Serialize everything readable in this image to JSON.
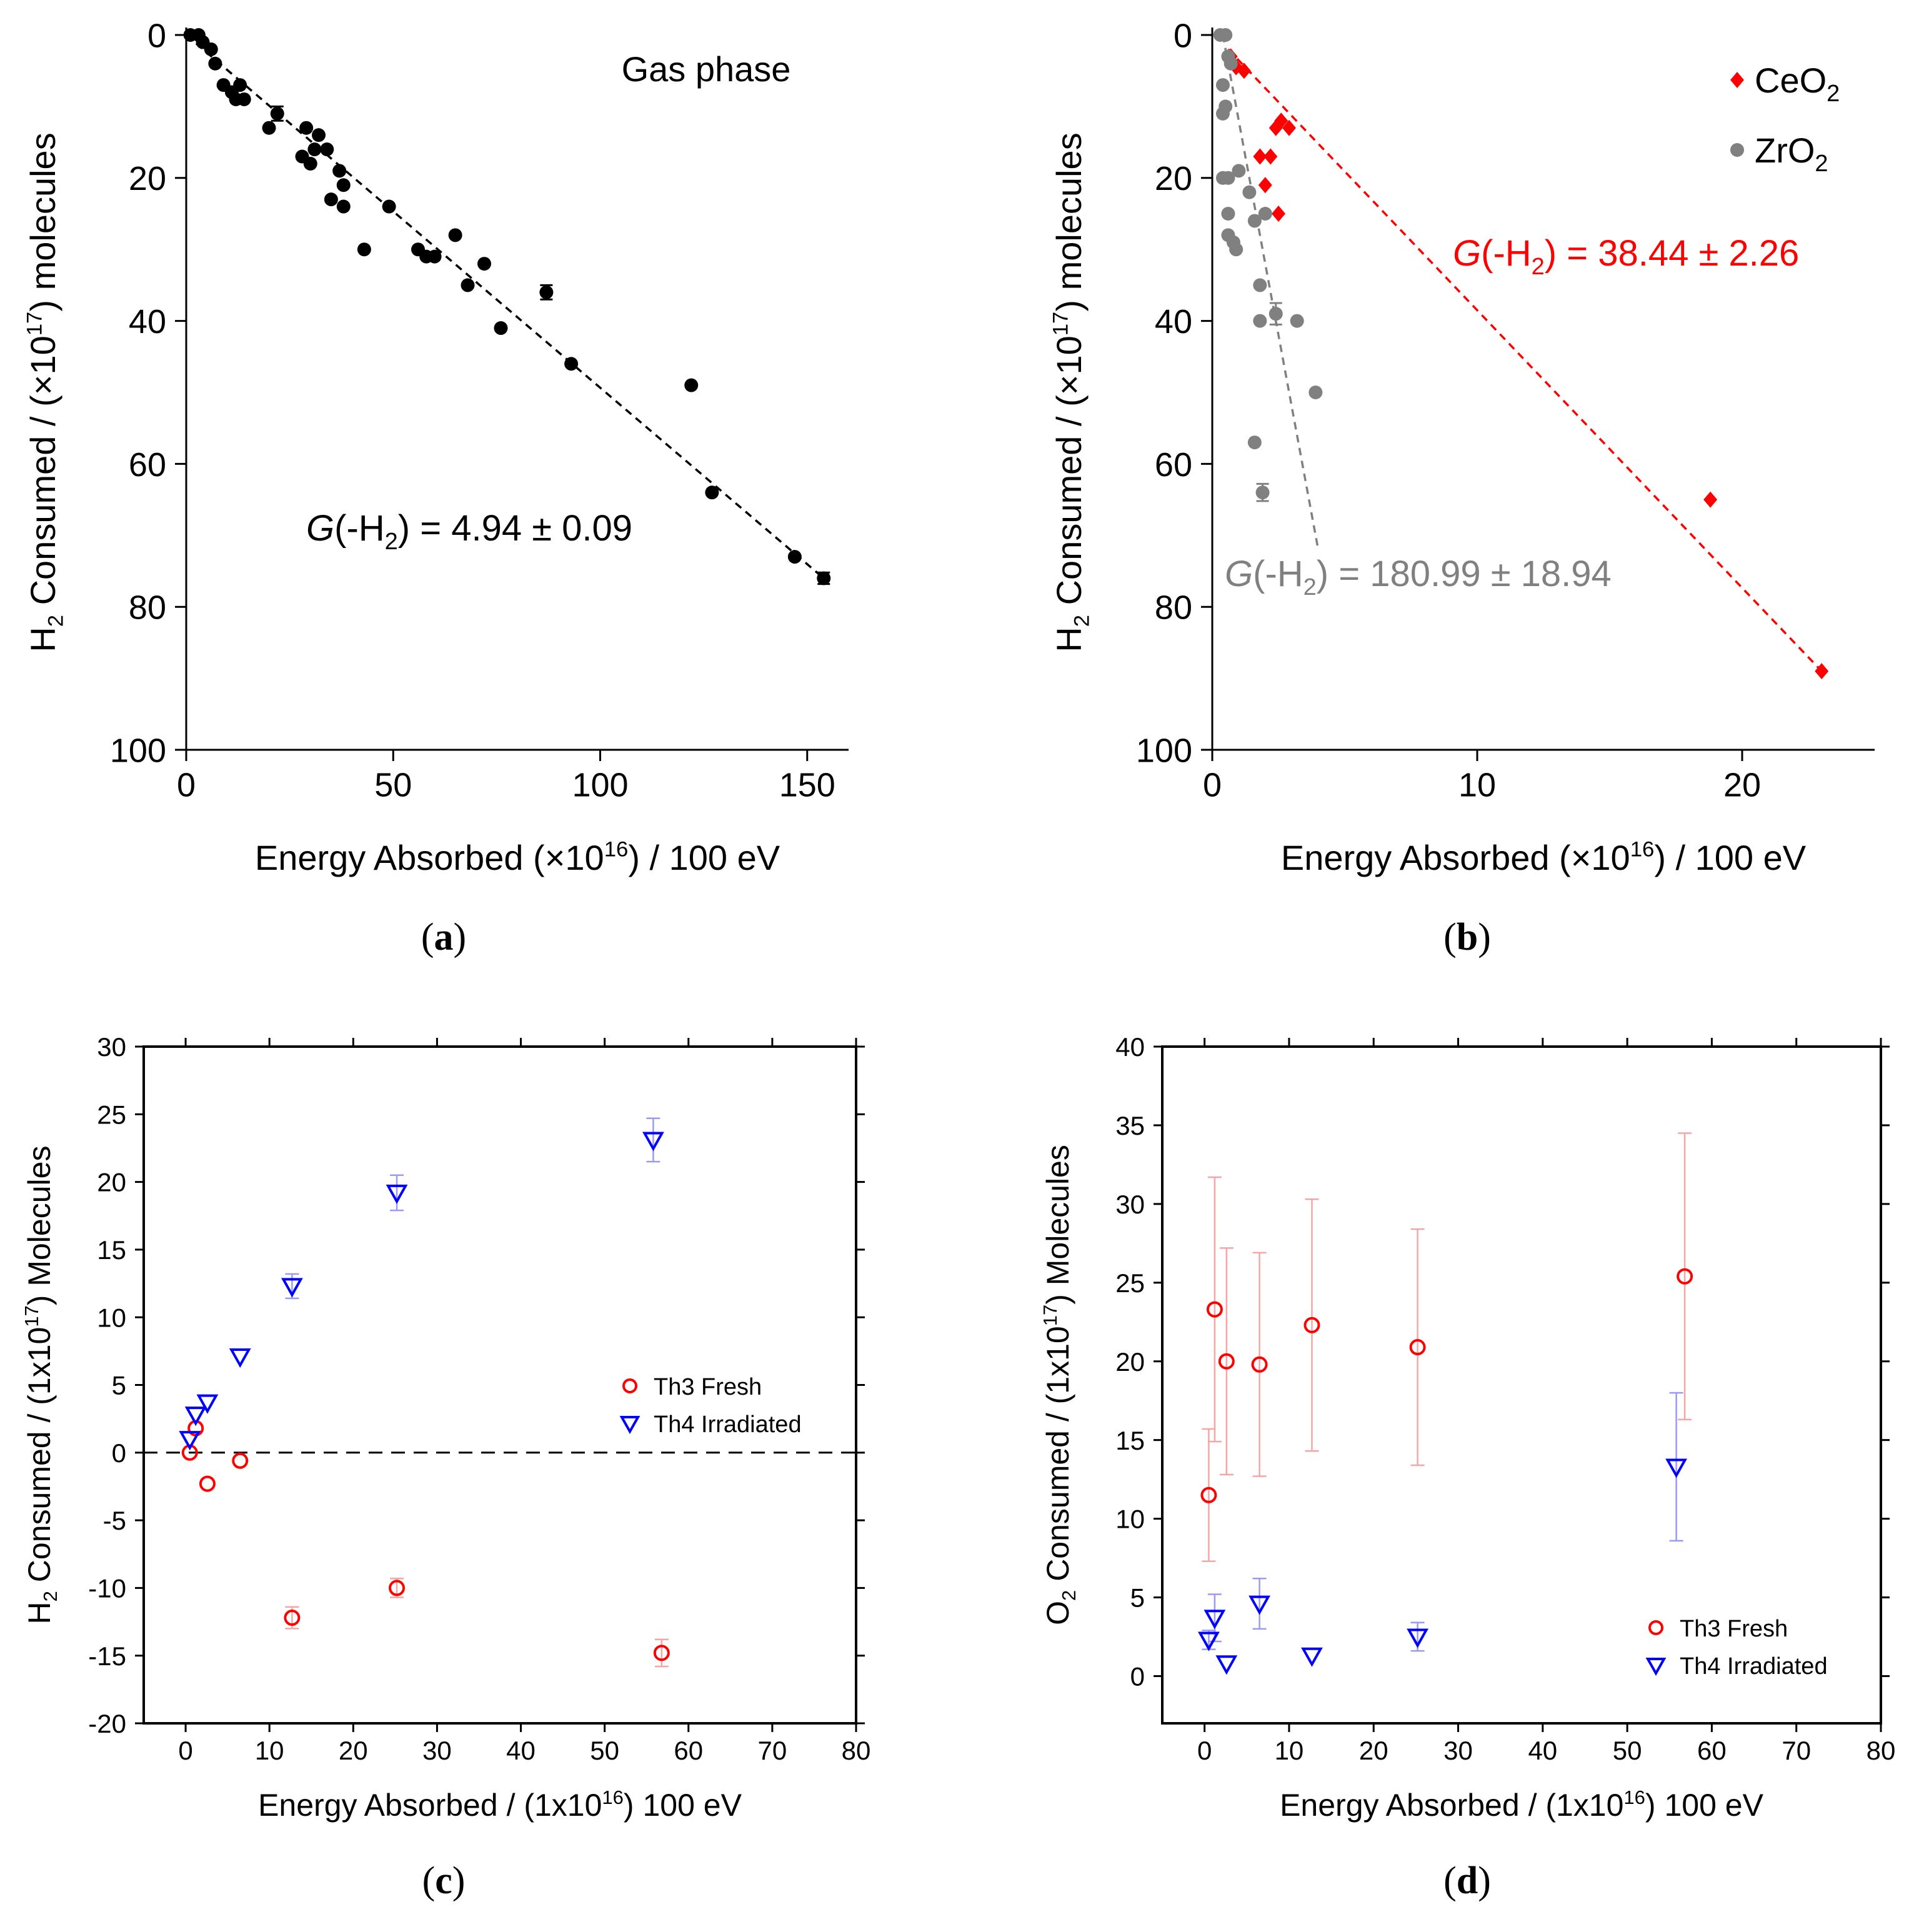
{
  "chart_data": [
    {
      "type": "scatter",
      "panel_label": "a",
      "xlabel": "Energy Absorbed (×10",
      "xlabel_sup": "16",
      "xlabel_tail": ") / 100 eV",
      "ylabel_pre": "H",
      "ylabel_sub": "2",
      "ylabel_mid": " Consumed / (×10",
      "ylabel_sup": "17",
      "ylabel_tail": ") molecules",
      "xlim": [
        0,
        160
      ],
      "ylim": [
        0,
        100
      ],
      "y_inverted": true,
      "xticks": [
        0,
        50,
        100,
        150
      ],
      "yticks": [
        0,
        20,
        40,
        60,
        80,
        100
      ],
      "annotation": "Gas phase",
      "fit_label_g": "G",
      "fit_label_tail": " = 4.94 ± 0.09",
      "fit_line": {
        "x": [
          0,
          154
        ],
        "y": [
          0,
          76
        ]
      },
      "series": [
        {
          "color": "#000000",
          "marker": "circle",
          "points": [
            [
              1,
              0
            ],
            [
              3,
              0
            ],
            [
              4,
              1
            ],
            [
              6,
              2
            ],
            [
              7,
              4
            ],
            [
              9,
              7
            ],
            [
              11,
              8
            ],
            [
              13,
              7
            ],
            [
              12,
              9
            ],
            [
              14,
              9
            ],
            [
              20,
              13
            ],
            [
              22,
              11
            ],
            [
              28,
              17
            ],
            [
              29,
              13
            ],
            [
              31,
              16
            ],
            [
              30,
              18
            ],
            [
              32,
              14
            ],
            [
              34,
              16
            ],
            [
              35,
              23
            ],
            [
              37,
              19
            ],
            [
              38,
              24
            ],
            [
              38,
              21
            ],
            [
              43,
              30
            ],
            [
              49,
              24
            ],
            [
              56,
              30
            ],
            [
              58,
              31
            ],
            [
              60,
              31
            ],
            [
              65,
              28
            ],
            [
              68,
              35
            ],
            [
              72,
              32
            ],
            [
              76,
              41
            ],
            [
              87,
              36
            ],
            [
              93,
              46
            ],
            [
              122,
              49
            ],
            [
              127,
              64
            ],
            [
              147,
              73
            ],
            [
              154,
              76
            ]
          ],
          "error_bars": [
            [
              22,
              1
            ],
            [
              87,
              1
            ],
            [
              154,
              0.8
            ]
          ]
        }
      ]
    },
    {
      "type": "scatter",
      "panel_label": "b",
      "xlabel": "Energy Absorbed (×10",
      "xlabel_sup": "16",
      "xlabel_tail": ") / 100 eV",
      "ylabel_pre": "H",
      "ylabel_sub": "2",
      "ylabel_mid": " Consumed / (×10",
      "ylabel_sup": "17",
      "ylabel_tail": ") molecules",
      "xlim": [
        0,
        25
      ],
      "ylim": [
        0,
        100
      ],
      "y_inverted": true,
      "xticks": [
        0,
        10,
        20
      ],
      "yticks": [
        0,
        20,
        40,
        60,
        80,
        100
      ],
      "series": [
        {
          "name": "CeO",
          "name_sub": "2",
          "color": "#ff0000",
          "marker": "diamond",
          "points": [
            [
              0.7,
              3
            ],
            [
              0.9,
              4.5
            ],
            [
              1.2,
              5
            ],
            [
              1.8,
              17
            ],
            [
              2.2,
              17
            ],
            [
              2.0,
              21
            ],
            [
              2.4,
              13
            ],
            [
              2.6,
              12
            ],
            [
              2.9,
              13
            ],
            [
              2.5,
              25
            ],
            [
              18.8,
              65
            ],
            [
              23.0,
              89
            ]
          ],
          "error_bars": [
            [
              2.7,
              1.2
            ]
          ],
          "fit_line": {
            "x": [
              0.6,
              23.0
            ],
            "y": [
              2,
              89
            ]
          },
          "fit_label_g": "G",
          "fit_label_tail": " = 38.44 ± 2.26"
        },
        {
          "name": "ZrO",
          "name_sub": "2",
          "color": "#808080",
          "marker": "circle",
          "points": [
            [
              0.3,
              0
            ],
            [
              0.5,
              0
            ],
            [
              0.6,
              3
            ],
            [
              0.7,
              4
            ],
            [
              0.4,
              7
            ],
            [
              0.5,
              10
            ],
            [
              0.4,
              11
            ],
            [
              0.4,
              20
            ],
            [
              1.0,
              19
            ],
            [
              0.6,
              20
            ],
            [
              0.6,
              25
            ],
            [
              0.6,
              28
            ],
            [
              0.8,
              29
            ],
            [
              0.9,
              30
            ],
            [
              1.4,
              22
            ],
            [
              1.6,
              26
            ],
            [
              2.0,
              25
            ],
            [
              1.8,
              35
            ],
            [
              1.8,
              40
            ],
            [
              2.4,
              39
            ],
            [
              3.2,
              40
            ],
            [
              3.9,
              50
            ],
            [
              1.6,
              57
            ],
            [
              1.9,
              64
            ]
          ],
          "error_bars": [
            [
              2.4,
              1.5
            ],
            [
              1.9,
              1.2
            ]
          ],
          "fit_line": {
            "x": [
              0.4,
              4.0
            ],
            "y": [
              0,
              72
            ]
          },
          "fit_label_g": "G",
          "fit_label_tail": " = 180.99 ± 18.94"
        }
      ]
    },
    {
      "type": "scatter",
      "panel_label": "c",
      "xlabel": "Energy Absorbed / (1x10",
      "xlabel_sup": "16",
      "xlabel_tail": ") 100 eV",
      "ylabel_pre": "H",
      "ylabel_sub": "2",
      "ylabel_mid": " Consumed / (1x10",
      "ylabel_sup": "17",
      "ylabel_tail": ") Molecules",
      "xlim": [
        -5,
        80
      ],
      "ylim": [
        -20,
        30
      ],
      "xticks": [
        0,
        10,
        20,
        30,
        40,
        50,
        60,
        70,
        80
      ],
      "yticks": [
        -20,
        -15,
        -10,
        -5,
        0,
        5,
        10,
        15,
        20,
        25,
        30
      ],
      "zero_line": true,
      "series": [
        {
          "name": "Th3 Fresh",
          "color": "#ff0000",
          "marker": "open-circle",
          "points": [
            [
              0.5,
              0
            ],
            [
              1.2,
              1.8
            ],
            [
              2.6,
              -2.3
            ],
            [
              6.5,
              -0.6
            ],
            [
              12.7,
              -12.2
            ],
            [
              25.2,
              -10.0
            ],
            [
              56.8,
              -14.8
            ]
          ],
          "errors": [
            0,
            0,
            0,
            0,
            0.8,
            0.7,
            1.0
          ]
        },
        {
          "name": "Th4 Irradiated",
          "color": "#0000ff",
          "marker": "open-triangle-down",
          "points": [
            [
              0.5,
              1.0
            ],
            [
              1.2,
              2.8
            ],
            [
              2.6,
              3.7
            ],
            [
              6.5,
              7.1
            ],
            [
              12.7,
              12.3
            ],
            [
              25.2,
              19.2
            ],
            [
              55.8,
              23.1
            ]
          ],
          "errors": [
            0,
            0,
            0,
            0,
            0.9,
            1.3,
            1.6
          ]
        }
      ]
    },
    {
      "type": "scatter",
      "panel_label": "d",
      "xlabel": "Energy Absorbed / (1x10",
      "xlabel_sup": "16",
      "xlabel_tail": ") 100 eV",
      "ylabel_pre": "O",
      "ylabel_sub": "2",
      "ylabel_mid": " Consumed / (1x10",
      "ylabel_sup": "17",
      "ylabel_tail": ") Molecules",
      "xlim": [
        -5,
        80
      ],
      "ylim": [
        -3,
        40
      ],
      "xticks": [
        0,
        10,
        20,
        30,
        40,
        50,
        60,
        70,
        80
      ],
      "yticks": [
        0,
        5,
        10,
        15,
        20,
        25,
        30,
        35,
        40
      ],
      "series": [
        {
          "name": "Th3 Fresh",
          "color": "#ff0000",
          "marker": "open-circle",
          "points": [
            [
              0.5,
              11.5
            ],
            [
              1.2,
              23.3
            ],
            [
              2.6,
              20.0
            ],
            [
              6.5,
              19.8
            ],
            [
              12.7,
              22.3
            ],
            [
              25.2,
              20.9
            ],
            [
              56.8,
              25.4
            ]
          ],
          "errors": [
            4.2,
            8.4,
            7.2,
            7.1,
            8.0,
            7.5,
            9.1
          ]
        },
        {
          "name": "Th4 Irradiated",
          "color": "#0000ff",
          "marker": "open-triangle-down",
          "points": [
            [
              0.5,
              2.3
            ],
            [
              1.2,
              3.7
            ],
            [
              2.6,
              0.8
            ],
            [
              6.5,
              4.6
            ],
            [
              12.7,
              1.3
            ],
            [
              25.2,
              2.5
            ],
            [
              55.8,
              13.3
            ]
          ],
          "errors": [
            0.6,
            1.5,
            0,
            1.6,
            0,
            0.9,
            4.7
          ]
        }
      ]
    }
  ]
}
